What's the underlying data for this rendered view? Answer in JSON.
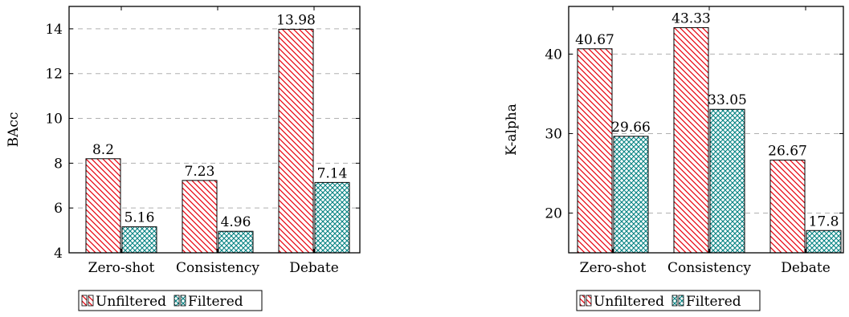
{
  "chart_data": [
    {
      "type": "bar",
      "categories": [
        "Zero-shot",
        "Consistency",
        "Debate"
      ],
      "series": [
        {
          "name": "Unfiltered",
          "values": [
            8.2,
            7.23,
            13.98
          ],
          "color": "#e8000b",
          "pattern": "diagonal-hatch"
        },
        {
          "name": "Filtered",
          "values": [
            5.16,
            4.96,
            7.14
          ],
          "color": "#008080",
          "pattern": "crosshatch"
        }
      ],
      "data_labels": [
        [
          "8.2",
          "7.23",
          "13.98"
        ],
        [
          "5.16",
          "4.96",
          "7.14"
        ]
      ],
      "ylabel": "BAcc",
      "xlabel": "",
      "ylim": [
        4,
        15
      ],
      "yticks": [
        4,
        6,
        8,
        10,
        12,
        14
      ],
      "grid": "horizontal-dashed",
      "legend_position": "bottom-left"
    },
    {
      "type": "bar",
      "categories": [
        "Zero-shot",
        "Consistency",
        "Debate"
      ],
      "series": [
        {
          "name": "Unfiltered",
          "values": [
            40.67,
            43.33,
            26.67
          ],
          "color": "#e8000b",
          "pattern": "diagonal-hatch"
        },
        {
          "name": "Filtered",
          "values": [
            29.66,
            33.05,
            17.8
          ],
          "color": "#008080",
          "pattern": "crosshatch"
        }
      ],
      "data_labels": [
        [
          "40.67",
          "43.33",
          "26.67"
        ],
        [
          "29.66",
          "33.05",
          "17.8"
        ]
      ],
      "ylabel": "K-alpha",
      "xlabel": "",
      "ylim": [
        15,
        46
      ],
      "yticks": [
        20,
        30,
        40
      ],
      "grid": "horizontal-dashed",
      "legend_position": "bottom-left"
    }
  ]
}
